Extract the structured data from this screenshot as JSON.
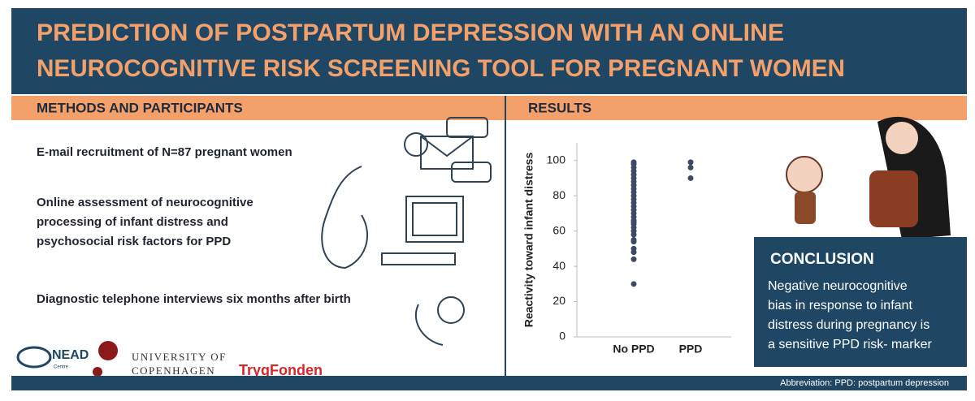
{
  "title": [
    "PREDICTION OF POSTPARTUM DEPRESSION WITH AN ONLINE",
    "NEUROCOGNITIVE RISK SCREENING TOOL FOR PREGNANT WOMEN"
  ],
  "methods": {
    "heading": "METHODS AND PARTICIPANTS",
    "items": [
      [
        "E-mail recruitment of N=87 pregnant women"
      ],
      [
        "Online assessment of neurocognitive",
        "processing of infant distress and",
        "psychosocial risk factors for PPD"
      ],
      [
        "Diagnostic telephone interviews six months after birth"
      ]
    ]
  },
  "results": {
    "heading": "RESULTS"
  },
  "chart_data": {
    "type": "strip",
    "y_label": "Reactivity toward infant distress",
    "categories": [
      "No PPD",
      "PPD"
    ],
    "values": [
      [
        30,
        44,
        48,
        50,
        54,
        55,
        58,
        60,
        62,
        64,
        65,
        66,
        68,
        70,
        72,
        74,
        76,
        78,
        80,
        82,
        84,
        86,
        88,
        90,
        92,
        94,
        96,
        98,
        99
      ],
      [
        90,
        96,
        99
      ]
    ],
    "color": "#3d4a63",
    "ylim": [
      0,
      110
    ],
    "yticks": [
      0,
      20,
      40,
      60,
      80,
      100
    ]
  },
  "conclusion": {
    "heading": "CONCLUSION",
    "lines": [
      "Negative neurocognitive",
      "bias in response to infant",
      "distress during pregnancy is",
      "a sensitive PPD risk- marker"
    ]
  },
  "logos": {
    "nead": "NEAD",
    "nead_sub": "Centre",
    "university": [
      "UNIVERSITY OF",
      "COPENHAGEN"
    ],
    "tryg": "TrygFonden"
  },
  "footer": "Abbreviation: PPD: postpartum depression"
}
